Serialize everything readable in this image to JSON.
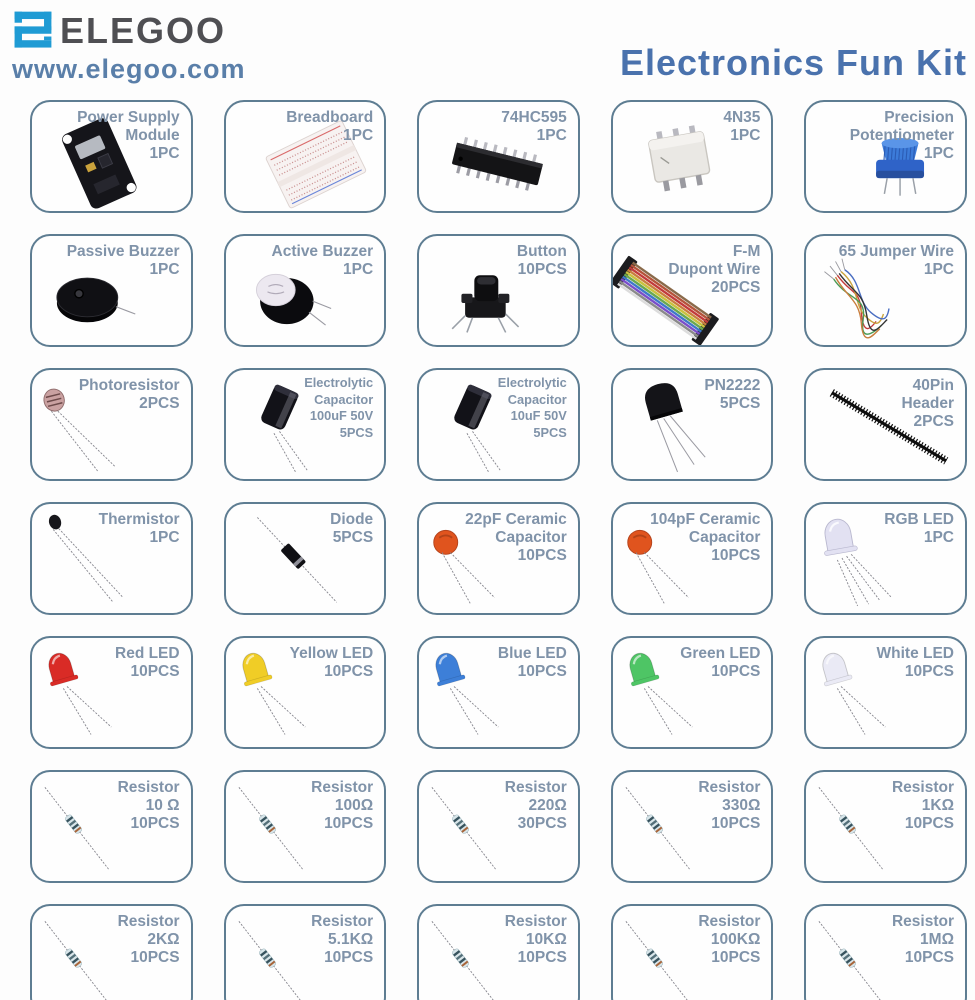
{
  "header": {
    "brand": "ELEGOO",
    "website": "www.elegoo.com",
    "title": "Electronics Fun Kit"
  },
  "colors": {
    "title_blue": "#4a72ad",
    "url_blue": "#5a7fa9",
    "label_gray_blue": "#8093a9",
    "card_border": "#5e7d92",
    "logo_teal": "#1f9bd4",
    "brand_gray": "#4f4f53"
  },
  "icons": [
    "elegoo-logo-icon",
    "power-supply-module-icon",
    "breadboard-icon",
    "ic-chip-icon",
    "optocoupler-icon",
    "potentiometer-icon",
    "passive-buzzer-icon",
    "active-buzzer-icon",
    "push-button-icon",
    "dupont-wires-icon",
    "jumper-wires-icon",
    "photoresistor-icon",
    "electrolytic-capacitor-icon",
    "transistor-icon",
    "pin-header-icon",
    "thermistor-icon",
    "diode-icon",
    "ceramic-capacitor-icon",
    "rgb-led-icon",
    "led-icon",
    "resistor-icon"
  ],
  "items": [
    {
      "name_lines": [
        "Power Supply",
        "Module"
      ],
      "qty": "1PC",
      "icon": "power-supply-module"
    },
    {
      "name_lines": [
        "Breadboard"
      ],
      "qty": "1PC",
      "icon": "breadboard"
    },
    {
      "name_lines": [
        "74HC595"
      ],
      "qty": "1PC",
      "icon": "ic-chip"
    },
    {
      "name_lines": [
        "4N35"
      ],
      "qty": "1PC",
      "icon": "optocoupler"
    },
    {
      "name_lines": [
        "Precision",
        "Potentiometer"
      ],
      "qty": "1PC",
      "icon": "potentiometer"
    },
    {
      "name_lines": [
        "Passive Buzzer"
      ],
      "qty": "1PC",
      "icon": "passive-buzzer"
    },
    {
      "name_lines": [
        "Active Buzzer"
      ],
      "qty": "1PC",
      "icon": "active-buzzer"
    },
    {
      "name_lines": [
        "Button"
      ],
      "qty": "10PCS",
      "icon": "push-button"
    },
    {
      "name_lines": [
        "F-M",
        "Dupont Wire"
      ],
      "qty": "20PCS",
      "icon": "dupont-wires"
    },
    {
      "name_lines": [
        "65 Jumper Wire"
      ],
      "qty": "1PC",
      "icon": "jumper-wires"
    },
    {
      "name_lines": [
        "Photoresistor"
      ],
      "qty": "2PCS",
      "icon": "photoresistor"
    },
    {
      "name_lines": [
        "Electrolytic",
        "Capacitor",
        "100uF 50V"
      ],
      "qty": "5PCS",
      "icon": "electrolytic-capacitor",
      "small": true
    },
    {
      "name_lines": [
        "Electrolytic",
        "Capacitor",
        "10uF 50V"
      ],
      "qty": "5PCS",
      "icon": "electrolytic-capacitor",
      "small": true
    },
    {
      "name_lines": [
        "PN2222"
      ],
      "qty": "5PCS",
      "icon": "transistor"
    },
    {
      "name_lines": [
        "40Pin",
        "Header"
      ],
      "qty": "2PCS",
      "icon": "pin-header"
    },
    {
      "name_lines": [
        "Thermistor"
      ],
      "qty": "1PC",
      "icon": "thermistor"
    },
    {
      "name_lines": [
        "Diode"
      ],
      "qty": "5PCS",
      "icon": "diode"
    },
    {
      "name_lines": [
        "22pF Ceramic",
        "Capacitor"
      ],
      "qty": "10PCS",
      "icon": "ceramic-capacitor"
    },
    {
      "name_lines": [
        "104pF Ceramic",
        "Capacitor"
      ],
      "qty": "10PCS",
      "icon": "ceramic-capacitor"
    },
    {
      "name_lines": [
        "RGB LED"
      ],
      "qty": "1PC",
      "icon": "rgb-led",
      "color": "#e2e1f2"
    },
    {
      "name_lines": [
        "Red LED"
      ],
      "qty": "10PCS",
      "icon": "led",
      "color": "#d92b26"
    },
    {
      "name_lines": [
        "Yellow LED"
      ],
      "qty": "10PCS",
      "icon": "led",
      "color": "#f0cd26"
    },
    {
      "name_lines": [
        "Blue LED"
      ],
      "qty": "10PCS",
      "icon": "led",
      "color": "#3d7fd8"
    },
    {
      "name_lines": [
        "Green LED"
      ],
      "qty": "10PCS",
      "icon": "led",
      "color": "#4ec565"
    },
    {
      "name_lines": [
        "White LED"
      ],
      "qty": "10PCS",
      "icon": "led",
      "color": "#eaeaf5"
    },
    {
      "name_lines": [
        "Resistor",
        "10 Ω"
      ],
      "qty": "10PCS",
      "icon": "resistor"
    },
    {
      "name_lines": [
        "Resistor",
        "100Ω"
      ],
      "qty": "10PCS",
      "icon": "resistor"
    },
    {
      "name_lines": [
        "Resistor",
        "220Ω"
      ],
      "qty": "30PCS",
      "icon": "resistor"
    },
    {
      "name_lines": [
        "Resistor",
        "330Ω"
      ],
      "qty": "10PCS",
      "icon": "resistor"
    },
    {
      "name_lines": [
        "Resistor",
        "1KΩ"
      ],
      "qty": "10PCS",
      "icon": "resistor"
    },
    {
      "name_lines": [
        "Resistor",
        "2KΩ"
      ],
      "qty": "10PCS",
      "icon": "resistor"
    },
    {
      "name_lines": [
        "Resistor",
        "5.1KΩ"
      ],
      "qty": "10PCS",
      "icon": "resistor"
    },
    {
      "name_lines": [
        "Resistor",
        "10KΩ"
      ],
      "qty": "10PCS",
      "icon": "resistor"
    },
    {
      "name_lines": [
        "Resistor",
        "100KΩ"
      ],
      "qty": "10PCS",
      "icon": "resistor"
    },
    {
      "name_lines": [
        "Resistor",
        "1MΩ"
      ],
      "qty": "10PCS",
      "icon": "resistor"
    }
  ]
}
